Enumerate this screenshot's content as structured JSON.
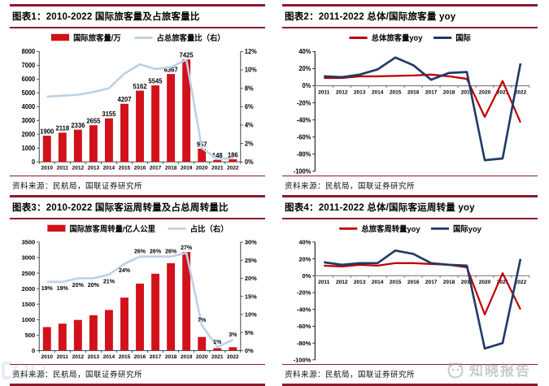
{
  "colors": {
    "rule_maroon": "#8C1A2D",
    "bar_red": "#D1111B",
    "red_line": "#C00000",
    "navy_line": "#1F3A66",
    "light_blue_line": "#BFD1E5",
    "zero_line_gray": "#808080",
    "axis_black": "#333333",
    "watermark_gray": "#9AA1A8"
  },
  "watermark": {
    "text": "知晓报告"
  },
  "chart_data": [
    {
      "id": "figure1",
      "type": "combo",
      "title": "图表1：2010-2022 国际旅客量及占旅客量比",
      "source_note": "资料来源：民航局，国联证券研究所",
      "categories": [
        "2010",
        "2011",
        "2012",
        "2013",
        "2014",
        "2015",
        "2016",
        "2017",
        "2018",
        "2019",
        "2020",
        "2021",
        "2022"
      ],
      "bar_series": {
        "name": "国际旅客量/万",
        "show_labels": true,
        "values": [
          1900,
          2118,
          2336,
          2655,
          3155,
          4207,
          5162,
          5545,
          6367,
          7425,
          957,
          148,
          186
        ]
      },
      "line_series": {
        "name": "占总旅客量比（右）",
        "values": [
          7.1,
          7.2,
          7.3,
          7.6,
          8.0,
          9.6,
          10.6,
          10.1,
          10.3,
          11.1,
          1.5,
          0.3,
          0.4
        ]
      },
      "left_axis": {
        "min": 0,
        "max": 8000,
        "step": 1000
      },
      "right_axis": {
        "min": 0,
        "max": 12,
        "step": 2,
        "suffix": "%"
      },
      "legend_position": "top"
    },
    {
      "id": "figure2",
      "type": "line",
      "title": "图表2：2011-2022 总体/国际旅客量 yoy",
      "source_note": "资料来源：民航局，国联证券研究所",
      "categories": [
        "2011",
        "2012",
        "2013",
        "2014",
        "2015",
        "2016",
        "2017",
        "2018",
        "2019",
        "2020",
        "2021",
        "2022"
      ],
      "series": [
        {
          "name": "总体旅客量yoy",
          "color_key": "red_line",
          "values": [
            9,
            9,
            11,
            11,
            11.5,
            12,
            13,
            11,
            8,
            -36.5,
            5.5,
            -43
          ]
        },
        {
          "name": "国际",
          "color_key": "navy_line",
          "values": [
            11,
            10,
            13,
            19,
            33,
            24,
            7,
            15,
            16,
            -87,
            -85,
            26
          ]
        }
      ],
      "y_axis": {
        "min": -100,
        "max": 40,
        "step": 20,
        "suffix": "%"
      },
      "legend_position": "top"
    },
    {
      "id": "figure3",
      "type": "combo",
      "title": "图表3：2010-2022 国际客运周转量及占总周转量比",
      "source_note": "资料来源：民航局，国联证券研究所",
      "categories": [
        "2010",
        "2011",
        "2012",
        "2013",
        "2014",
        "2015",
        "2016",
        "2017",
        "2018",
        "2019",
        "2020",
        "2021",
        "2022"
      ],
      "bar_series": {
        "name": "国际旅客周转量/亿人公里",
        "show_labels": false,
        "values": [
          760,
          870,
          990,
          1140,
          1310,
          1710,
          2160,
          2480,
          2820,
          3180,
          440,
          80,
          110
        ]
      },
      "line_series": {
        "name": "占比（右）",
        "values": [
          19,
          19,
          20,
          20,
          21,
          24,
          26,
          26,
          26,
          27,
          7,
          1,
          3
        ],
        "labels": [
          "19%",
          "19%",
          "20%",
          "20%",
          "21%",
          "24%",
          "26%",
          "26%",
          "26%",
          "27%",
          "7%",
          "1%",
          "3%"
        ],
        "labels_position": [
          "below",
          "below",
          "below",
          "below",
          "below",
          "below",
          "above",
          "above",
          "above",
          "above",
          "above",
          "above",
          "above"
        ]
      },
      "left_axis": {
        "min": 0,
        "max": 3500,
        "step": 500
      },
      "right_axis": {
        "min": 0,
        "max": 30,
        "step": 5,
        "suffix": "%"
      },
      "legend_position": "top"
    },
    {
      "id": "figure4",
      "type": "line",
      "title": "图表4：2011-2022 总体/国际客运周转量 yoy",
      "source_note": "资料来源：民航局，国联证券研究所",
      "categories": [
        "2011",
        "2012",
        "2013",
        "2014",
        "2015",
        "2016",
        "2017",
        "2018",
        "2019",
        "2020",
        "2021",
        "2022"
      ],
      "series": [
        {
          "name": "总旅客周转量yoy",
          "color_key": "red_line",
          "values": [
            12,
            11,
            13,
            12,
            15,
            15,
            14,
            13,
            10,
            -46,
            3,
            -40
          ]
        },
        {
          "name": "国际yoy",
          "color_key": "navy_line",
          "values": [
            16,
            13,
            15,
            15,
            30,
            26,
            15,
            13,
            12,
            -86.5,
            -80,
            20
          ]
        }
      ],
      "y_axis": {
        "min": -100,
        "max": 40,
        "step": 20,
        "suffix": "%"
      },
      "legend_position": "top"
    }
  ]
}
